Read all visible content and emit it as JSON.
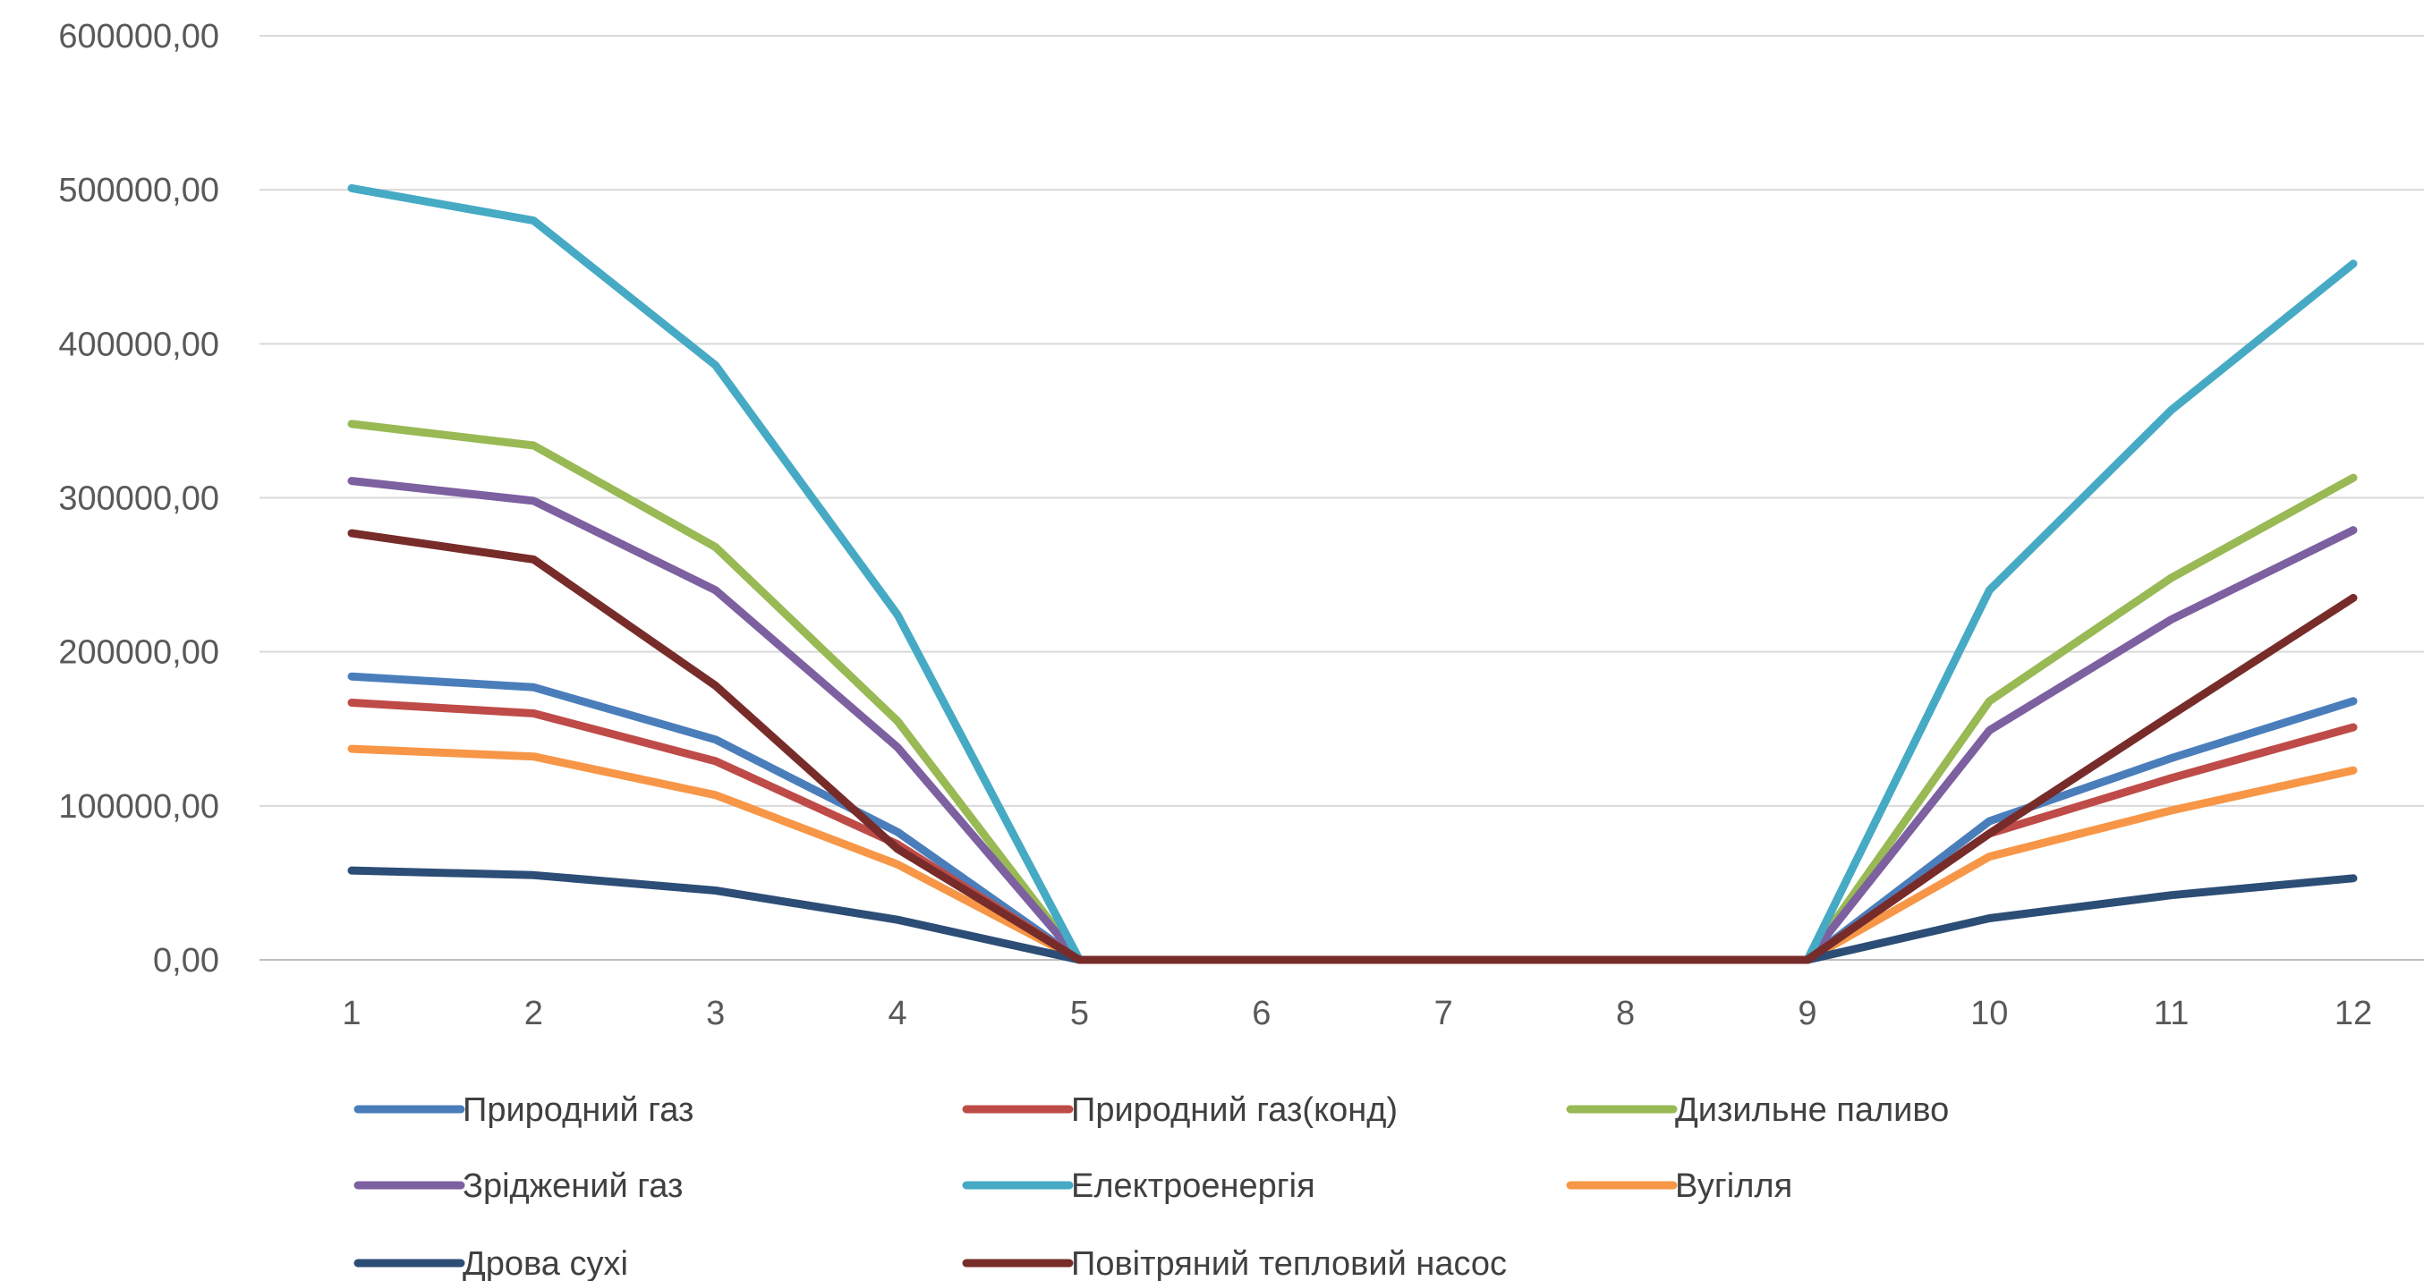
{
  "chart_data": {
    "type": "line",
    "title": "",
    "xlabel": "",
    "ylabel": "",
    "x": [
      1,
      2,
      3,
      4,
      5,
      6,
      7,
      8,
      9,
      10,
      11,
      12
    ],
    "x_tick_labels": [
      "1",
      "2",
      "3",
      "4",
      "5",
      "6",
      "7",
      "8",
      "9",
      "10",
      "11",
      "12"
    ],
    "ylim": [
      0,
      600000
    ],
    "y_ticks": [
      0,
      100000,
      200000,
      300000,
      400000,
      500000,
      600000
    ],
    "y_tick_labels": [
      "0,00",
      "100000,00",
      "200000,00",
      "300000,00",
      "400000,00",
      "500000,00",
      "600000,00"
    ],
    "grid": "horizontal",
    "legend_position": "bottom",
    "series": [
      {
        "name": "Природний газ",
        "color": "#4a7ebb",
        "values": [
          184000,
          177000,
          143000,
          83000,
          0,
          0,
          0,
          0,
          0,
          90000,
          131000,
          168000
        ]
      },
      {
        "name": "Природний газ(конд)",
        "color": "#be4b48",
        "values": [
          167000,
          160000,
          129000,
          75000,
          0,
          0,
          0,
          0,
          0,
          82000,
          118000,
          151000
        ]
      },
      {
        "name": "Дизильне паливо",
        "color": "#98b954",
        "values": [
          348000,
          334000,
          268000,
          155000,
          0,
          0,
          0,
          0,
          0,
          168000,
          248000,
          313000
        ]
      },
      {
        "name": "Зріджений газ",
        "color": "#7d60a0",
        "values": [
          311000,
          298000,
          240000,
          138000,
          0,
          0,
          0,
          0,
          0,
          149000,
          221000,
          279000
        ]
      },
      {
        "name": "Електроенергія",
        "color": "#46aac4",
        "values": [
          501000,
          480000,
          386000,
          224000,
          0,
          0,
          0,
          0,
          0,
          240000,
          357000,
          452000
        ]
      },
      {
        "name": "Вугілля",
        "color": "#f79646",
        "values": [
          137000,
          132000,
          107000,
          62000,
          0,
          0,
          0,
          0,
          0,
          67000,
          97000,
          123000
        ]
      },
      {
        "name": "Дрова сухі",
        "color": "#2c4d75",
        "values": [
          58000,
          55000,
          45000,
          26000,
          0,
          0,
          0,
          0,
          0,
          27000,
          42000,
          53000
        ]
      },
      {
        "name": "Повітряний тепловий насос",
        "color": "#772c2a",
        "values": [
          277000,
          260000,
          178000,
          72000,
          0,
          0,
          0,
          0,
          0,
          82000,
          159000,
          235000
        ]
      }
    ]
  }
}
